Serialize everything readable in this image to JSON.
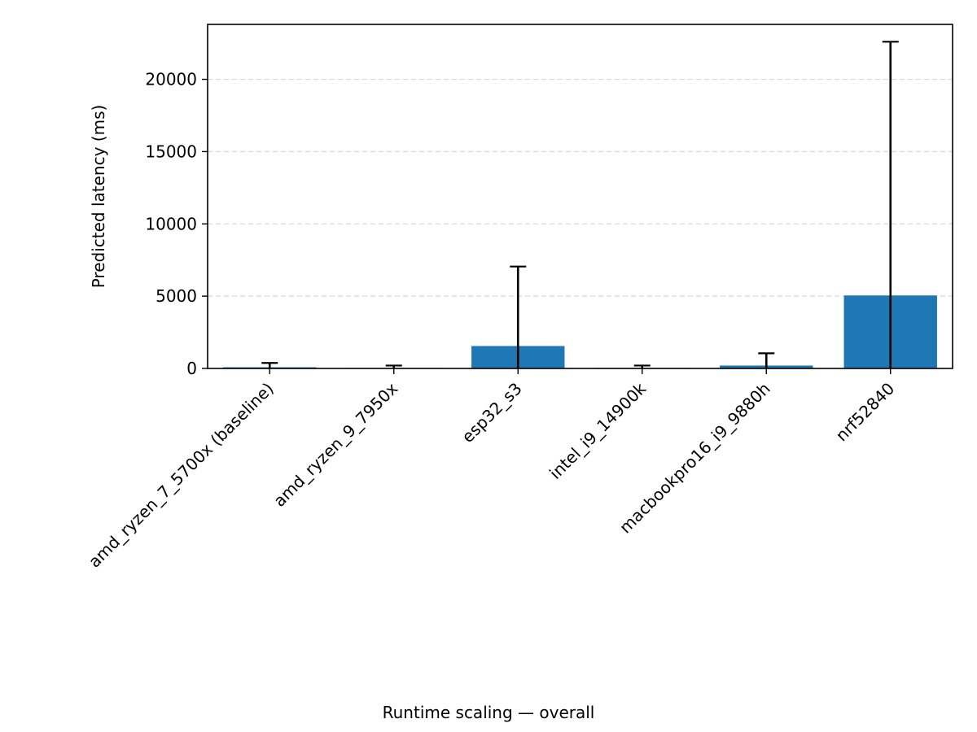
{
  "chart_data": {
    "type": "bar",
    "categories": [
      "amd_ryzen_7_5700x (baseline)",
      "amd_ryzen_9_7950x",
      "esp32_s3",
      "intel_i9_14900k",
      "macbookpro16_i9_9880h",
      "nrf52840"
    ],
    "values": [
      80,
      30,
      1550,
      35,
      200,
      5050
    ],
    "error_upper": [
      380,
      200,
      7050,
      200,
      1050,
      22600
    ],
    "error_lower": [
      0,
      0,
      0,
      0,
      0,
      0
    ],
    "title": "",
    "xlabel": "Runtime scaling — overall",
    "ylabel": "Predicted latency (ms)",
    "ylim": [
      0,
      23800
    ],
    "yticks": [
      0,
      5000,
      10000,
      15000,
      20000
    ],
    "ytick_labels": [
      "0",
      "5000",
      "10000",
      "15000",
      "20000"
    ],
    "grid": "y-dashed",
    "bar_color": "#1f77b4",
    "error_color": "#000000"
  }
}
